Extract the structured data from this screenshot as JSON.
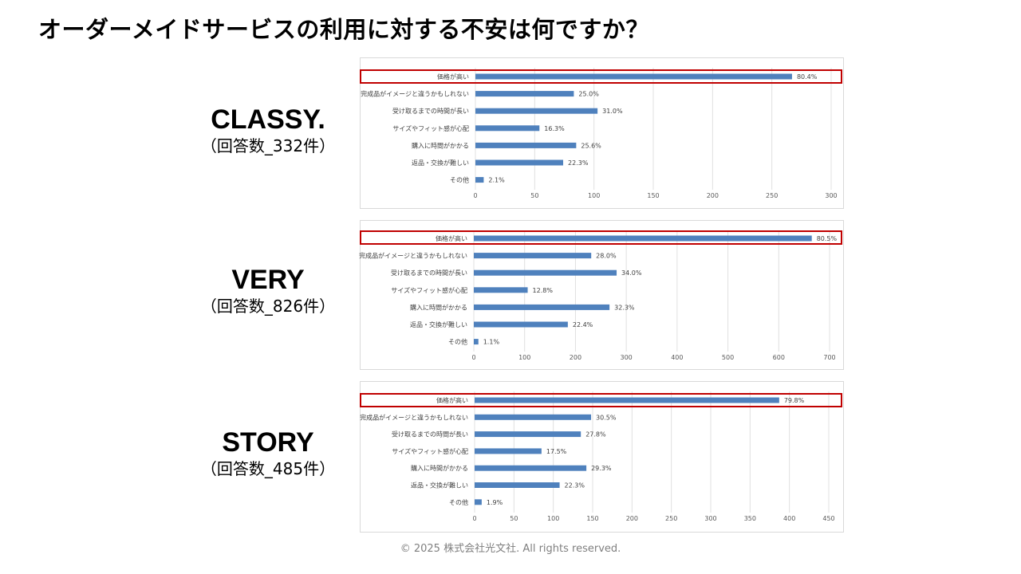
{
  "title": "オーダーメイドサービスの利用に対する不安は何ですか？",
  "footer": "© 2025 株式会社光文社. All rights reserved.",
  "colors": {
    "bar": "#4f81bd",
    "highlight": "#c00000"
  },
  "chart_data": [
    {
      "type": "bar",
      "orientation": "horizontal",
      "magazine": "CLASSY.",
      "respondents": "（回答数_332件）",
      "categories": [
        "価格が高い",
        "完成品がイメージと違うかもしれない",
        "受け取るまでの時間が長い",
        "サイズやフィット感が心配",
        "購入に時間がかかる",
        "返品・交換が難しい",
        "その他"
      ],
      "values": [
        267,
        83,
        103,
        54,
        85,
        74,
        7
      ],
      "data_labels": [
        "80.4%",
        "25.0%",
        "31.0%",
        "16.3%",
        "25.6%",
        "22.3%",
        "2.1%"
      ],
      "xlim": [
        0,
        300
      ],
      "xticks": [
        0,
        50,
        100,
        150,
        200,
        250,
        300
      ],
      "highlight_category": "価格が高い"
    },
    {
      "type": "bar",
      "orientation": "horizontal",
      "magazine": "VERY",
      "respondents": "（回答数_826件）",
      "categories": [
        "価格が高い",
        "完成品がイメージと違うかもしれない",
        "受け取るまでの時間が長い",
        "サイズやフィット感が心配",
        "購入に時間がかかる",
        "返品・交換が難しい",
        "その他"
      ],
      "values": [
        665,
        231,
        281,
        106,
        267,
        185,
        9
      ],
      "data_labels": [
        "80.5%",
        "28.0%",
        "34.0%",
        "12.8%",
        "32.3%",
        "22.4%",
        "1.1%"
      ],
      "xlim": [
        0,
        700
      ],
      "xticks": [
        0,
        100,
        200,
        300,
        400,
        500,
        600,
        700
      ],
      "highlight_category": "価格が高い"
    },
    {
      "type": "bar",
      "orientation": "horizontal",
      "magazine": "STORY",
      "respondents": "（回答数_485件）",
      "categories": [
        "価格が高い",
        "完成品がイメージと違うかもしれない",
        "受け取るまでの時間が長い",
        "サイズやフィット感が心配",
        "購入に時間がかかる",
        "返品・交換が難しい",
        "その他"
      ],
      "values": [
        387,
        148,
        135,
        85,
        142,
        108,
        9
      ],
      "data_labels": [
        "79.8%",
        "30.5%",
        "27.8%",
        "17.5%",
        "29.3%",
        "22.3%",
        "1.9%"
      ],
      "xlim": [
        0,
        450
      ],
      "xticks": [
        0,
        50,
        100,
        150,
        200,
        250,
        300,
        350,
        400,
        450
      ],
      "highlight_category": "価格が高い"
    }
  ]
}
